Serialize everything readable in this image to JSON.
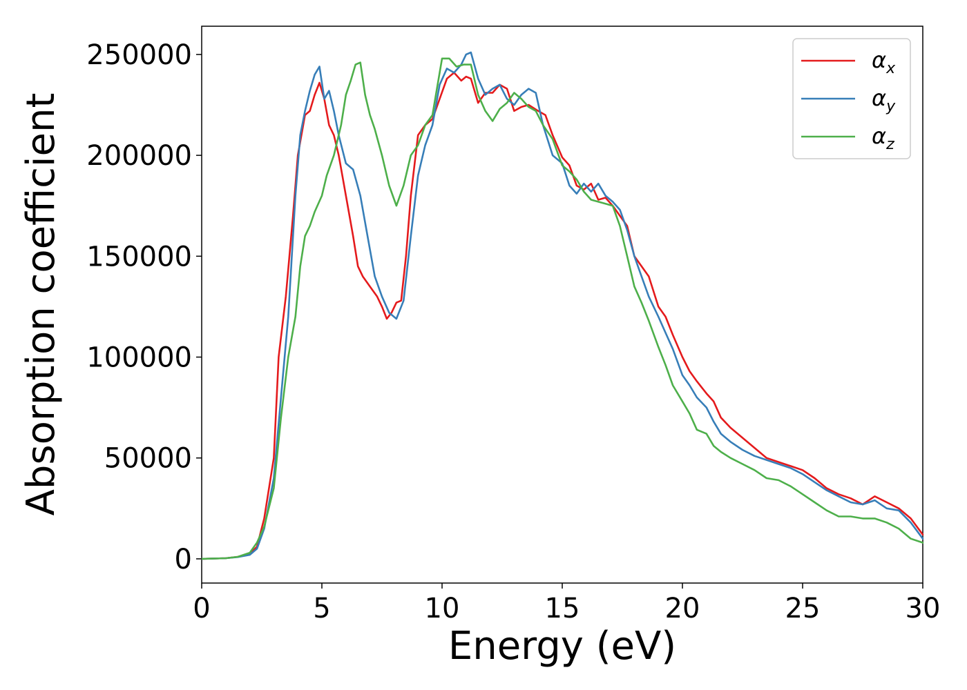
{
  "chart_data": {
    "type": "line",
    "title": "",
    "xlabel": "Energy (eV)",
    "ylabel": "Absorption coefficient",
    "xlim": [
      0,
      30
    ],
    "ylim": [
      -12000,
      264000
    ],
    "xticks": [
      0,
      5,
      10,
      15,
      20,
      25,
      30
    ],
    "yticks": [
      0,
      50000,
      100000,
      150000,
      200000,
      250000
    ],
    "xtick_labels": [
      "0",
      "5",
      "10",
      "15",
      "20",
      "25",
      "30"
    ],
    "ytick_labels": [
      "0",
      "50000",
      "100000",
      "150000",
      "200000",
      "250000"
    ],
    "grid": false,
    "legend_position": "top-right",
    "series": [
      {
        "name": "α",
        "subscript": "x",
        "color": "#e41a1c",
        "x": [
          0,
          1,
          1.5,
          2,
          2.3,
          2.6,
          3,
          3.2,
          3.5,
          3.8,
          4,
          4.3,
          4.5,
          4.7,
          4.9,
          5.1,
          5.3,
          5.5,
          5.7,
          6,
          6.3,
          6.5,
          6.7,
          7,
          7.3,
          7.5,
          7.7,
          7.9,
          8.1,
          8.3,
          8.5,
          8.7,
          9,
          9.3,
          9.6,
          9.9,
          10.2,
          10.5,
          10.8,
          11,
          11.2,
          11.5,
          11.8,
          12.1,
          12.4,
          12.7,
          13,
          13.3,
          13.6,
          14,
          14.3,
          14.6,
          15,
          15.3,
          15.6,
          15.9,
          16.2,
          16.5,
          16.8,
          17.1,
          17.4,
          17.7,
          18,
          18.3,
          18.6,
          19,
          19.3,
          19.6,
          20,
          20.3,
          20.6,
          21,
          21.3,
          21.6,
          22,
          22.5,
          23,
          23.5,
          24,
          24.5,
          25,
          25.5,
          26,
          26.5,
          27,
          27.5,
          28,
          28.5,
          29,
          29.5,
          30
        ],
        "values": [
          0,
          300,
          1000,
          2500,
          6000,
          20000,
          50000,
          100000,
          130000,
          170000,
          200000,
          220000,
          222000,
          230000,
          236000,
          228000,
          215000,
          210000,
          200000,
          180000,
          160000,
          145000,
          140000,
          135000,
          130000,
          125000,
          119000,
          122000,
          127000,
          128000,
          150000,
          180000,
          210000,
          215000,
          218000,
          228000,
          238000,
          241000,
          237000,
          239000,
          238000,
          226000,
          231000,
          231000,
          235000,
          233000,
          222000,
          224000,
          225000,
          222000,
          220000,
          210000,
          199000,
          195000,
          185000,
          183000,
          186000,
          178000,
          179000,
          175000,
          170000,
          165000,
          150000,
          145000,
          140000,
          125000,
          120000,
          111000,
          100000,
          93000,
          88000,
          82000,
          78000,
          70000,
          65000,
          60000,
          55000,
          50000,
          48000,
          46000,
          44000,
          40000,
          35000,
          32000,
          30000,
          27000,
          31000,
          28000,
          25000,
          20000,
          12000
        ]
      },
      {
        "name": "α",
        "subscript": "y",
        "color": "#377eb8",
        "x": [
          0,
          1,
          1.5,
          2,
          2.3,
          2.6,
          3,
          3.3,
          3.6,
          3.9,
          4.1,
          4.3,
          4.5,
          4.7,
          4.9,
          5.1,
          5.3,
          5.5,
          5.7,
          6,
          6.3,
          6.6,
          6.9,
          7.2,
          7.5,
          7.8,
          8.1,
          8.4,
          8.7,
          9,
          9.3,
          9.6,
          9.9,
          10.2,
          10.5,
          10.8,
          11,
          11.2,
          11.5,
          11.8,
          12.1,
          12.4,
          12.7,
          13,
          13.3,
          13.6,
          13.9,
          14.2,
          14.6,
          15,
          15.3,
          15.6,
          15.9,
          16.2,
          16.5,
          16.8,
          17.1,
          17.4,
          17.7,
          18,
          18.3,
          18.6,
          19,
          19.3,
          19.6,
          20,
          20.3,
          20.6,
          21,
          21.3,
          21.6,
          22,
          22.5,
          23,
          23.5,
          24,
          24.5,
          25,
          25.5,
          26,
          26.5,
          27,
          27.5,
          28,
          28.5,
          29,
          29.5,
          30
        ],
        "values": [
          0,
          300,
          900,
          2000,
          5000,
          15000,
          40000,
          80000,
          120000,
          180000,
          210000,
          222000,
          232000,
          240000,
          244000,
          228000,
          232000,
          222000,
          210000,
          196000,
          193000,
          180000,
          160000,
          140000,
          130000,
          122000,
          119000,
          128000,
          160000,
          190000,
          205000,
          215000,
          235000,
          243000,
          241000,
          245000,
          250000,
          251000,
          238000,
          230000,
          233000,
          235000,
          228000,
          225000,
          230000,
          233000,
          231000,
          215000,
          200000,
          196000,
          185000,
          181000,
          186000,
          182000,
          186000,
          180000,
          177000,
          173000,
          163000,
          150000,
          140000,
          130000,
          120000,
          112000,
          104000,
          91000,
          86000,
          80000,
          75000,
          68000,
          62000,
          58000,
          54000,
          51000,
          49000,
          47000,
          45000,
          42000,
          38000,
          34000,
          31000,
          28000,
          27000,
          29000,
          25000,
          24000,
          18000,
          10000
        ]
      },
      {
        "name": "α",
        "subscript": "z",
        "color": "#4daf4a",
        "x": [
          0,
          1,
          1.5,
          2,
          2.3,
          2.6,
          3,
          3.3,
          3.6,
          3.9,
          4.1,
          4.3,
          4.5,
          4.7,
          5,
          5.2,
          5.5,
          5.8,
          6,
          6.2,
          6.4,
          6.6,
          6.8,
          7,
          7.2,
          7.5,
          7.8,
          8.1,
          8.4,
          8.7,
          9,
          9.3,
          9.6,
          10,
          10.3,
          10.6,
          10.9,
          11.2,
          11.5,
          11.8,
          12.1,
          12.4,
          12.7,
          13,
          13.3,
          13.6,
          13.9,
          14.2,
          14.6,
          15,
          15.3,
          15.6,
          15.9,
          16.2,
          16.5,
          16.8,
          17.1,
          17.4,
          17.7,
          18,
          18.3,
          18.6,
          19,
          19.3,
          19.6,
          20,
          20.3,
          20.6,
          21,
          21.3,
          21.6,
          22,
          22.5,
          23,
          23.5,
          24,
          24.5,
          25,
          25.5,
          26,
          26.5,
          27,
          27.5,
          28,
          28.5,
          29,
          29.5,
          30
        ],
        "values": [
          0,
          300,
          1000,
          3000,
          8000,
          16000,
          35000,
          70000,
          100000,
          120000,
          145000,
          160000,
          165000,
          172000,
          180000,
          190000,
          200000,
          215000,
          230000,
          237000,
          245000,
          246000,
          230000,
          220000,
          213000,
          200000,
          185000,
          175000,
          185000,
          200000,
          205000,
          215000,
          220000,
          248000,
          248000,
          244000,
          245000,
          245000,
          230000,
          222000,
          217000,
          223000,
          226000,
          231000,
          228000,
          224000,
          222000,
          215000,
          208000,
          195000,
          192000,
          188000,
          182000,
          178000,
          177000,
          176000,
          175000,
          165000,
          150000,
          135000,
          127000,
          118000,
          105000,
          96000,
          86000,
          78000,
          72000,
          64000,
          62000,
          56000,
          53000,
          50000,
          47000,
          44000,
          40000,
          39000,
          36000,
          32000,
          28000,
          24000,
          21000,
          21000,
          20000,
          20000,
          18000,
          15000,
          10000,
          8000
        ]
      }
    ]
  }
}
